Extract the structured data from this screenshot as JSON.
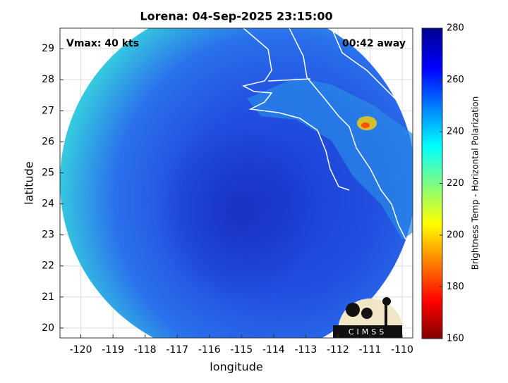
{
  "chart_data": {
    "type": "map",
    "title": "Lorena: 04-Sep-2025 23:15:00",
    "annotations": [
      "Vmax: 40 kts",
      "00:42 away"
    ],
    "xlabel": "longitude",
    "ylabel": "latitude",
    "xlim": [
      -120.65,
      -109.67
    ],
    "ylim": [
      19.68,
      29.66
    ],
    "xticks": [
      -120,
      -119,
      -118,
      -117,
      -116,
      -115,
      -114,
      -113,
      -112,
      -111,
      -110
    ],
    "yticks": [
      20,
      21,
      22,
      23,
      24,
      25,
      26,
      27,
      28,
      29
    ],
    "grid": true,
    "colorbar": {
      "label": "Brightness Temp - Horizontal Polarization",
      "lim": [
        160,
        280
      ],
      "ticks": [
        160,
        180,
        200,
        220,
        240,
        260,
        280
      ]
    },
    "logo": "CIMSS"
  }
}
